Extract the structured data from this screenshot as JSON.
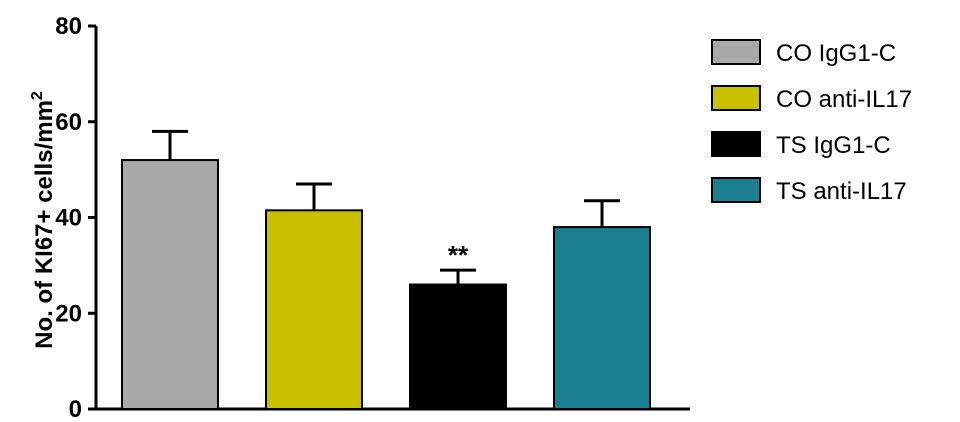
{
  "chart_data": {
    "type": "bar",
    "title": "",
    "xlabel": "",
    "ylabel": "No. of KI67+ cells/mm",
    "ylabel_superscript": "2",
    "ylim": [
      0,
      80
    ],
    "yticks": [
      "0",
      "20",
      "40",
      "60",
      "80"
    ],
    "grid": false,
    "legend_position": "right",
    "categories": [
      "CO IgG1-C",
      "CO anti-IL17",
      "TS IgG1-C",
      "TS anti-IL17"
    ],
    "values": [
      52,
      41.5,
      26,
      38
    ],
    "errors": [
      6,
      5.5,
      3,
      5.5
    ],
    "colors": [
      "#a9a9a9",
      "#c8c000",
      "#000000",
      "#1a7f91"
    ],
    "annotations": [
      {
        "category": "TS IgG1-C",
        "text": "**"
      }
    ],
    "legend": [
      {
        "label": "CO IgG1-C",
        "color": "#a9a9a9"
      },
      {
        "label": "CO anti-IL17",
        "color": "#c8c000"
      },
      {
        "label": "TS IgG1-C",
        "color": "#000000"
      },
      {
        "label": "TS anti-IL17",
        "color": "#1a7f91"
      }
    ]
  }
}
